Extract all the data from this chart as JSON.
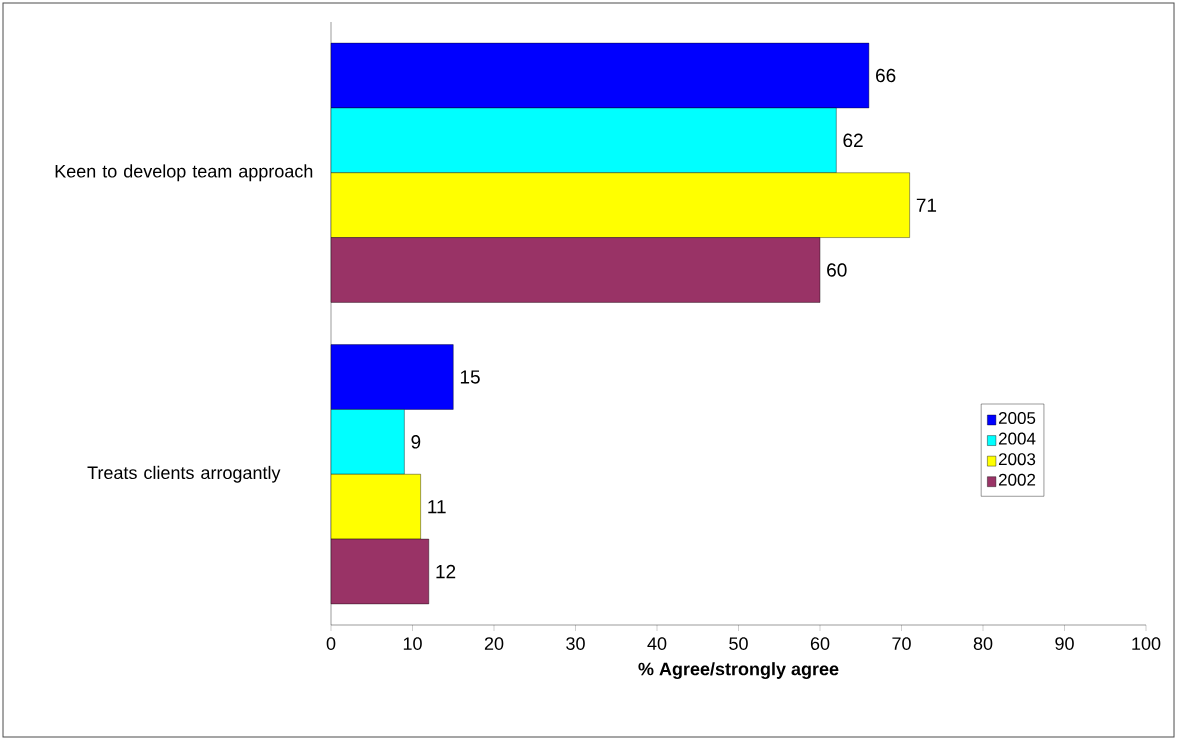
{
  "chart_data": {
    "type": "bar",
    "orientation": "horizontal",
    "xlabel": "% Agree/strongly agree",
    "categories": [
      "Keen to develop team approach",
      "Treats clients arrogantly"
    ],
    "series": [
      {
        "name": "2005",
        "color": "#0000ff",
        "values": [
          66,
          15
        ]
      },
      {
        "name": "2004",
        "color": "#00ffff",
        "values": [
          62,
          9
        ]
      },
      {
        "name": "2003",
        "color": "#ffff00",
        "values": [
          71,
          11
        ]
      },
      {
        "name": "2002",
        "color": "#993366",
        "values": [
          60,
          12
        ]
      }
    ],
    "xlim": [
      0,
      100
    ],
    "xticks": [
      0,
      10,
      20,
      30,
      40,
      50,
      60,
      70,
      80,
      90,
      100
    ],
    "data_labels": true,
    "legend": "right"
  }
}
